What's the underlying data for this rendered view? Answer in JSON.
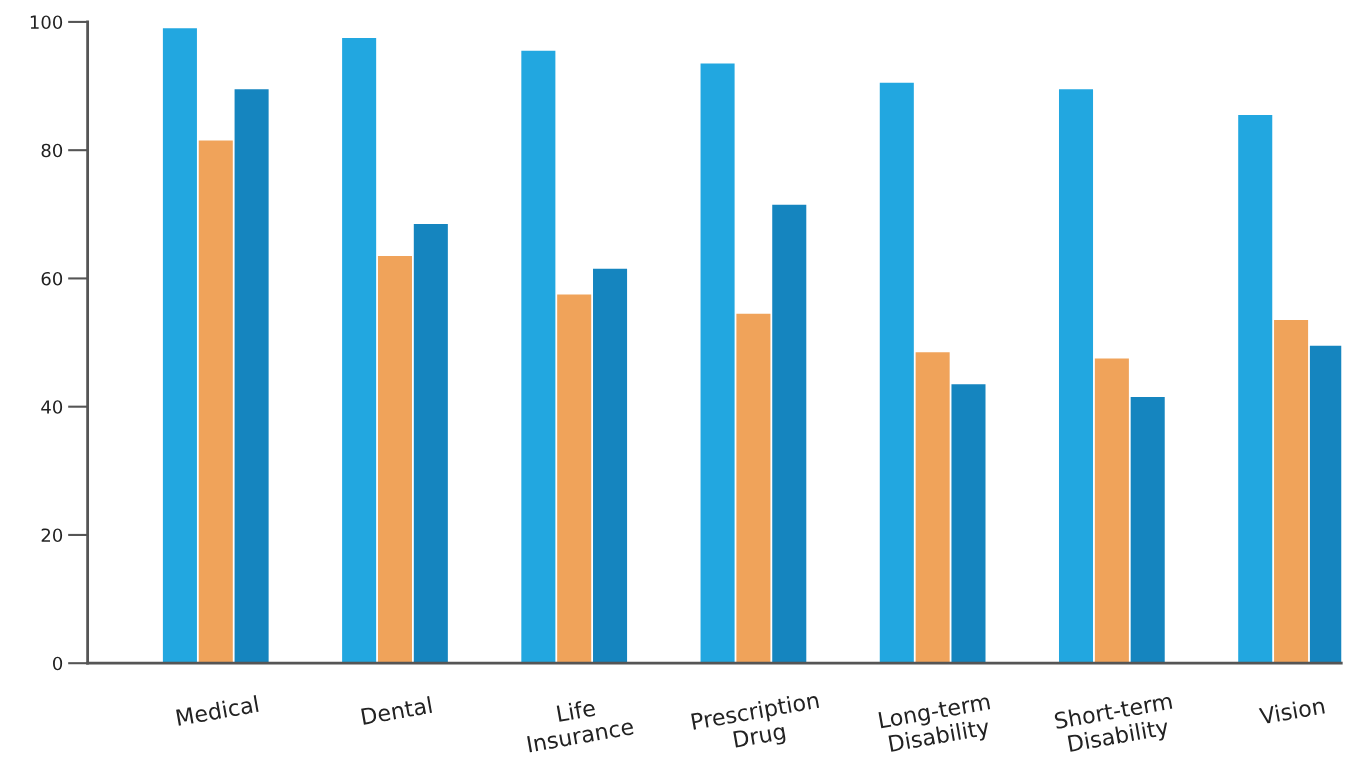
{
  "chart_data": {
    "type": "bar",
    "categories": [
      "Medical",
      "Dental",
      "Life\nInsurance",
      "Prescription\nDrug",
      "Long-term\nDisability",
      "Short-term\nDisability",
      "Vision"
    ],
    "series": [
      {
        "color": "#22a7e0",
        "values": [
          99,
          97.5,
          95.5,
          93.5,
          90.5,
          89.5,
          85.5
        ]
      },
      {
        "color": "#f0a35a",
        "values": [
          81.5,
          63.5,
          57.5,
          54.5,
          48.5,
          47.5,
          53.5
        ]
      },
      {
        "color": "#1585bf",
        "values": [
          89.5,
          68.5,
          61.5,
          71.5,
          43.5,
          41.5,
          49.5
        ]
      }
    ],
    "ylim": [
      0,
      100
    ],
    "yticks": [
      0,
      20,
      40,
      60,
      80,
      100
    ],
    "grid": false
  }
}
